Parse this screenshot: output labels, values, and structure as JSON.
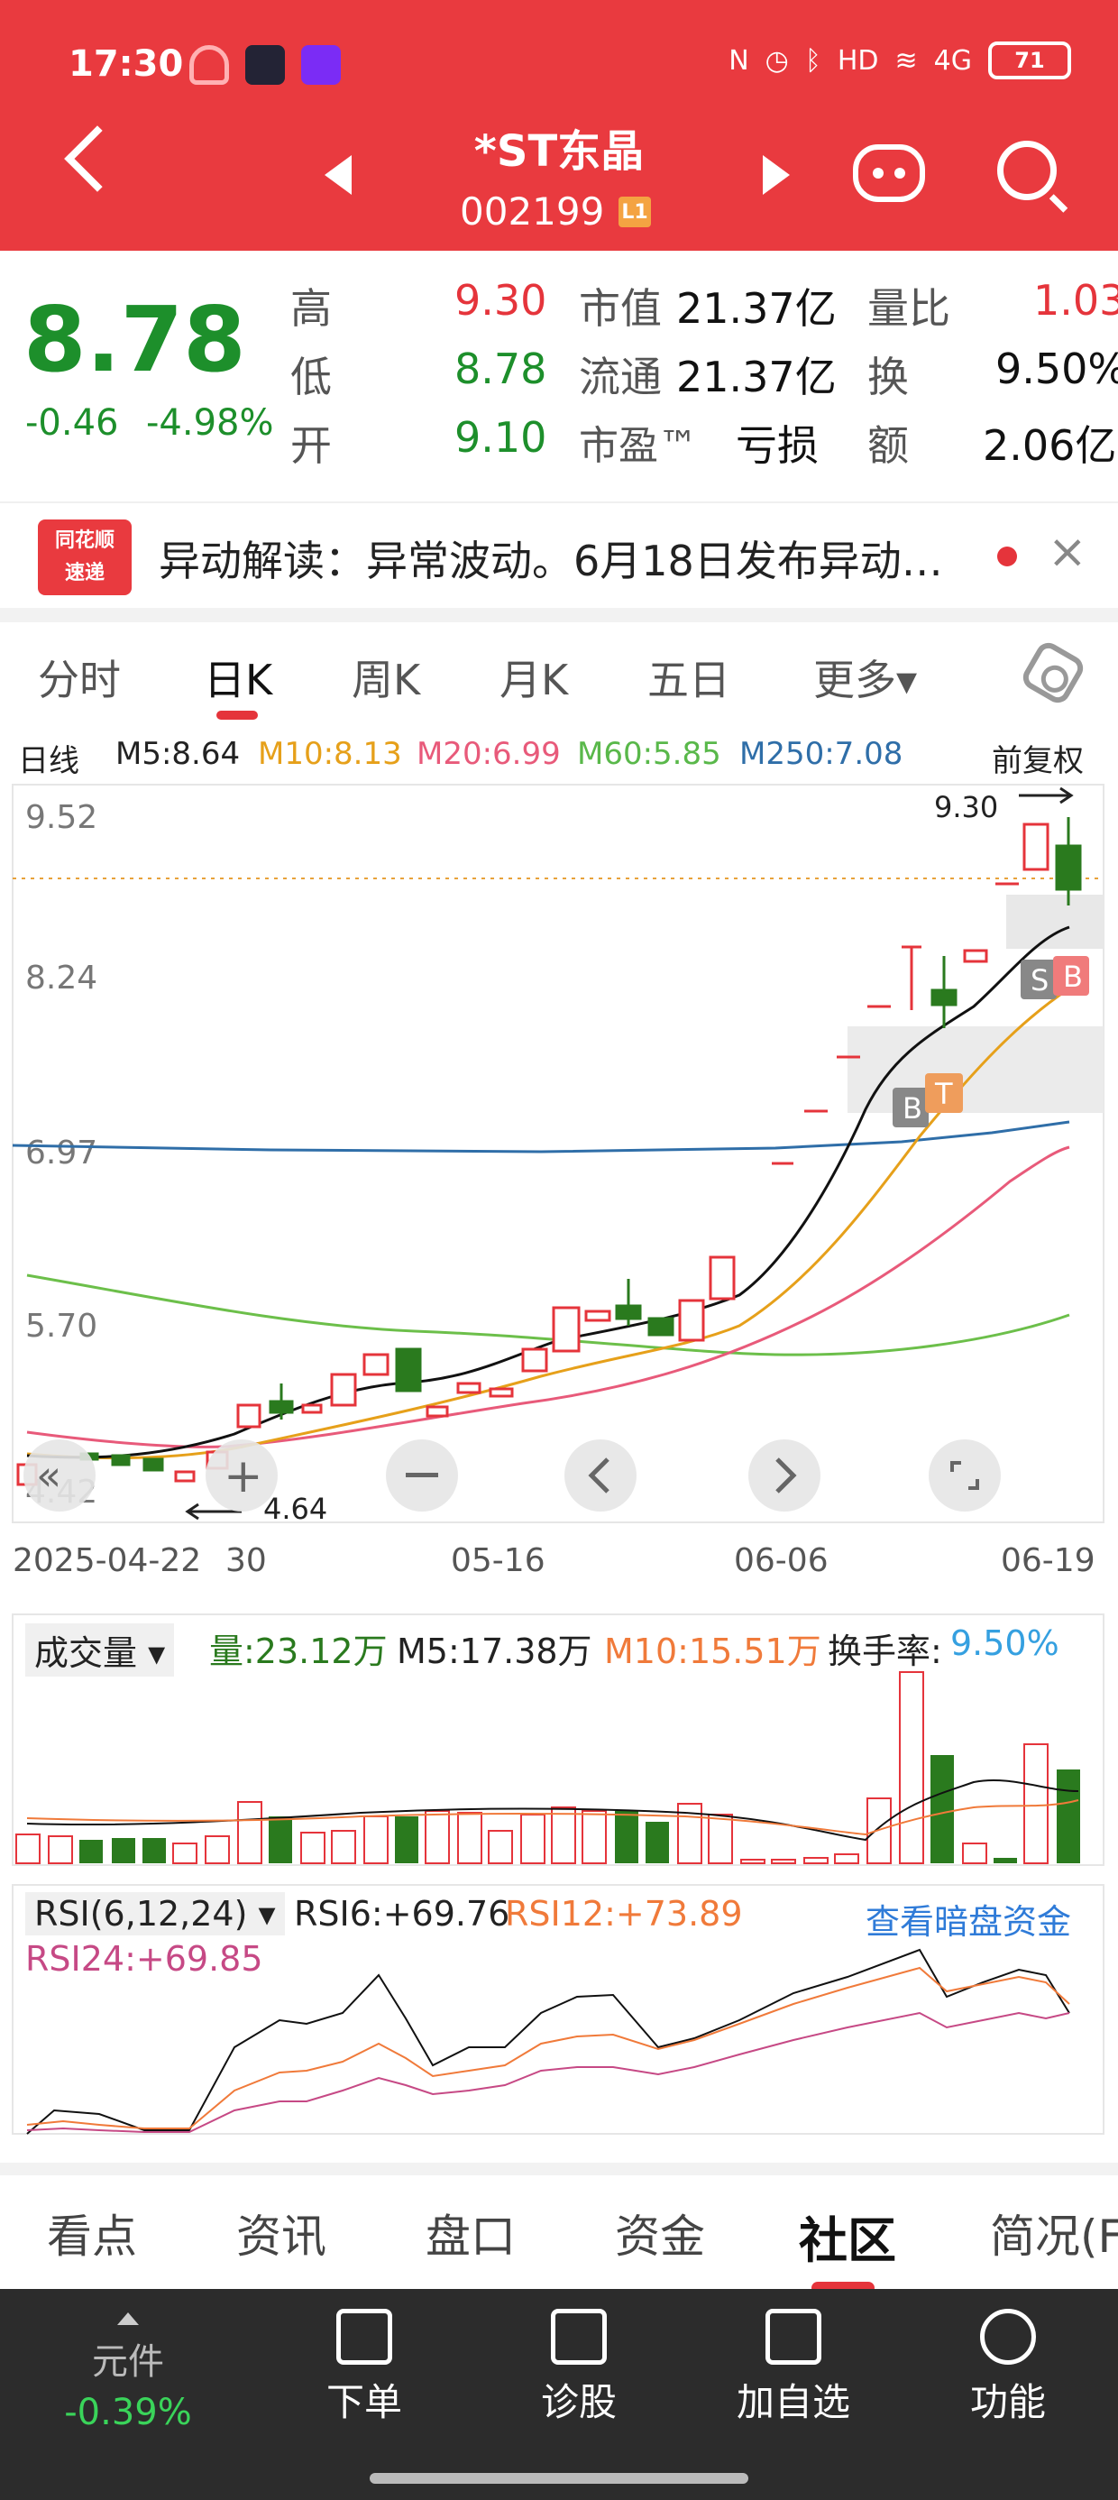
{
  "status_bar": {
    "time": "17:30",
    "battery": "71",
    "network": "4G"
  },
  "header": {
    "stock_name": "*ST东晶",
    "stock_code": "002199",
    "level": "L1"
  },
  "quote": {
    "price": "8.78",
    "change": "-0.46",
    "change_pct": "-4.98%",
    "high_label": "高",
    "high": "9.30",
    "low_label": "低",
    "low": "8.78",
    "open_label": "开",
    "open": "9.10",
    "mcap_label": "市值",
    "mcap": "21.37亿",
    "float_label": "流通",
    "float": "21.37亿",
    "pe_label": "市盈™",
    "pe": "亏损",
    "vol_ratio_label": "量比",
    "vol_ratio": "1.03",
    "turnover_label": "换",
    "turnover": "9.50%",
    "amount_label": "额",
    "amount": "2.06亿"
  },
  "news": {
    "logo_line1": "同花顺",
    "logo_line2": "速递",
    "text": "异动解读：异常波动。6月18日发布异动…"
  },
  "period_tabs": [
    "分时",
    "日K",
    "周K",
    "月K",
    "五日",
    "更多▾"
  ],
  "ma_legend": {
    "type": "日线",
    "m5": "M5:8.64",
    "m10": "M10:8.13",
    "m20": "M20:6.99",
    "m60": "M60:5.85",
    "m250": "M250:7.08",
    "adjust": "前复权"
  },
  "kline": {
    "y_ticks": [
      "9.52",
      "8.24",
      "6.97",
      "5.70",
      "4.42"
    ],
    "high_marker": "9.30",
    "low_marker": "4.64",
    "dates": [
      "2025-04-22",
      "30",
      "05-16",
      "06-06",
      "06-19"
    ],
    "markers": {
      "b1": "B",
      "t": "T",
      "s": "S",
      "b2": "B"
    }
  },
  "volume": {
    "selector": "成交量 ▾",
    "vol": "量:23.12万",
    "m5": "M5:17.38万",
    "m10": "M10:15.51万",
    "turnover_label": "换手率:",
    "turnover": "9.50%"
  },
  "rsi": {
    "selector": "RSI(6,12,24) ▾",
    "rsi6": "RSI6:+69.76",
    "rsi12": "RSI12:+73.89",
    "rsi24": "RSI24:+69.85",
    "link": "查看暗盘资金"
  },
  "bottom_tabs": [
    "看点",
    "资讯",
    "盘口",
    "资金",
    "社区",
    "简况(F"
  ],
  "toolbar": {
    "unit": "元件",
    "unit_pct": "-0.39%",
    "order": "下单",
    "diagnose": "诊股",
    "add": "加自选",
    "func": "功能"
  },
  "colors": {
    "header_red": "#e93a3f",
    "up_red": "#e5343b",
    "down_green": "#1d8f2b",
    "blue_link": "#2f7bd8"
  }
}
